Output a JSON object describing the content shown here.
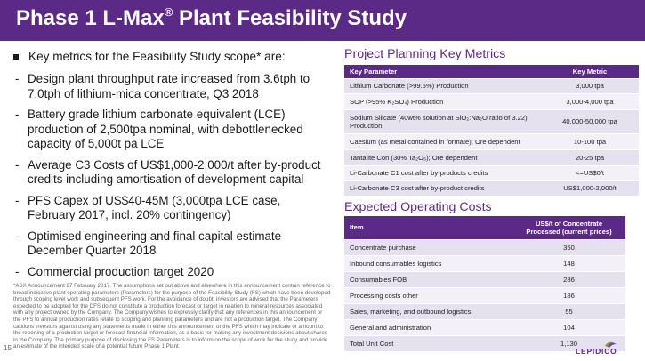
{
  "header": {
    "title_main": "Phase 1 L-Max",
    "title_sup": "®",
    "title_rest": " Plant Feasibility Study"
  },
  "left": {
    "bullet": "Key metrics for the Feasibility Study scope* are:",
    "items": [
      "Design plant throughput rate increased from 3.6tph to 7.0tph of lithium-mica concentrate, Q3 2018",
      "Battery grade lithium carbonate equivalent (LCE) production of 2,500tpa nominal, with debottlenecked capacity of 5,000t pa LCE",
      "Average C3 Costs of US$1,000-2,000/t after by-product credits including amortisation of development capital",
      "PFS Capex of US$40-45M (3,000tpa LCE case, February 2017, incl. 20% contingency)",
      "Optimised engineering and final capital estimate December Quarter 2018",
      "Commercial production target 2020"
    ],
    "footnote": "*ASX Announcement 27 February 2017. The assumptions set out above and elsewhere in this announcement contain reference to broad indicative plant operating parameters (Parameters) for the purpose of the Feasibility Study (FS) which have been developed through scoping level work and subsequent PFS work. For the avoidance of doubt, investors are advised that the Parameters expected to be adopted for the DFS do not constitute a production forecast or target in relation to mineral resources associated with any project owned by the Company. The Company wishes to expressly clarify that any references in this announcement or the PFS to annual production rates relate to scoping and planning parameters and are not a production target. The Company cautions investors against using any statements made in either this announcement or the PFS which may indicate or amount to the reporting of a production target or forecast financial information, as a basis for making any investment decisions about shares in the Company. The primary purpose of disclosing the FS Parameters is to inform on the scope of work for the study and provide an estimate of the intended scale of a potential future Phase 1 Plant.",
    "page_number": "15"
  },
  "metrics": {
    "title": "Project Planning Key Metrics",
    "col_param": "Key Parameter",
    "col_metric": "Key Metric",
    "rows": [
      {
        "param": "Lithium Carbonate (>99.5%) Production",
        "metric": "3,000 tpa"
      },
      {
        "param": "SOP (>95% K₂SO₄) Production",
        "metric": "3,000-4,000 tpa"
      },
      {
        "param": "Sodium Silicate (40wt% solution at SiO₂:Na₂O ratio of 3.22) Production",
        "metric": "40,000-50,000 tpa"
      },
      {
        "param": "Caesium (as metal contained in formate); Ore dependent",
        "metric": "10-100 tpa"
      },
      {
        "param": "Tantalite Con (30% Ta₂O₅); Ore dependent",
        "metric": "20-25 tpa"
      },
      {
        "param": "Li-Carbonate C1 cost after by-products credits",
        "metric": "<=US$0/t"
      },
      {
        "param": "Li-Carbonate C3 cost after by-product credits",
        "metric": "US$1,000-2,000/t"
      }
    ]
  },
  "costs": {
    "title": "Expected Operating Costs",
    "col_item": "Item",
    "col_cost_line1": "US$/t of Concentrate",
    "col_cost_line2": "Processed (current prices)",
    "rows": [
      {
        "item": "Concentrate purchase",
        "value": "350"
      },
      {
        "item": "Inbound consumables logistics",
        "value": "148"
      },
      {
        "item": "Consumables FOB",
        "value": "286"
      },
      {
        "item": "Processing costs other",
        "value": "186"
      },
      {
        "item": "Sales, marketing, and outbound logistics",
        "value": "55"
      },
      {
        "item": "General and administration",
        "value": "104"
      },
      {
        "item": "Total Unit Cost",
        "value": "1,130"
      }
    ]
  },
  "logo": {
    "text": "LEPIDICO"
  },
  "colors": {
    "brand_purple": "#5b2a86",
    "row_light": "#e6e1ee",
    "row_lighter": "#f3f0f7"
  }
}
